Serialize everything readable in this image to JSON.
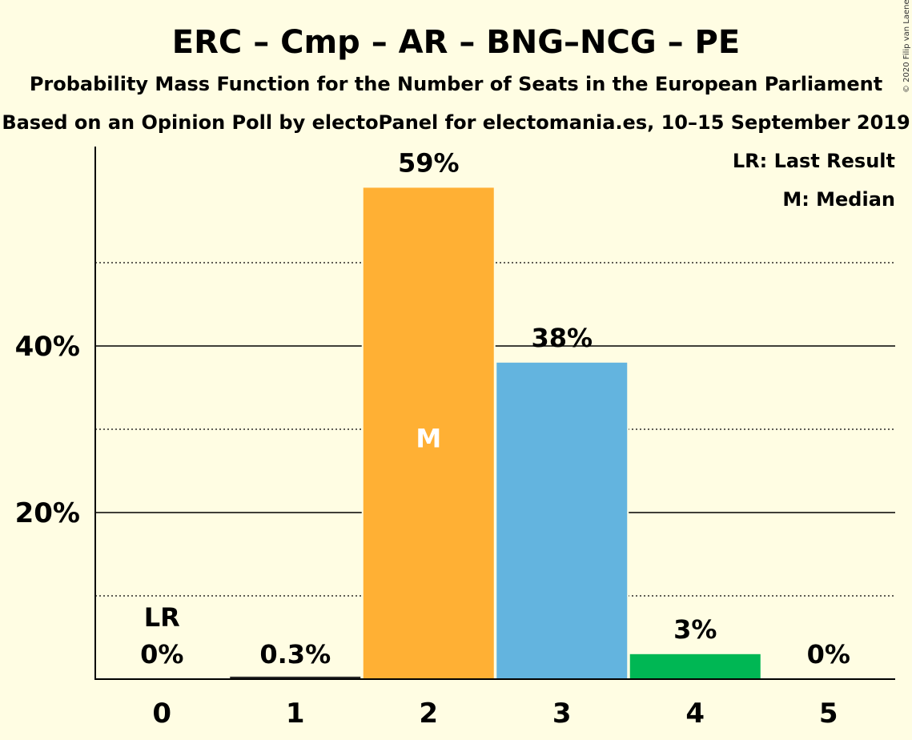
{
  "title": "ERC – Cmp – AR – BNG–NCG – PE",
  "subtitle1": "Probability Mass Function for the Number of Seats in the European Parliament",
  "subtitle2": "Based on an Opinion Poll by electoPanel for electomania.es, 10–15 September 2019",
  "copyright": "© 2020 Filip van Laenen",
  "legend": {
    "last_result": "LR: Last Result",
    "median": "M: Median"
  },
  "colors": {
    "background": "#FFFDE3",
    "bar_2": "#FFB034",
    "bar_3": "#63B4DF",
    "bar_4": "#00B754",
    "bar_1": "#2A2A2A"
  },
  "chart_data": {
    "type": "bar",
    "categories": [
      "0",
      "1",
      "2",
      "3",
      "4",
      "5"
    ],
    "values": [
      0,
      0.3,
      59,
      38,
      3,
      0
    ],
    "data_labels": [
      "0%",
      "0.3%",
      "59%",
      "38%",
      "3%",
      "0%"
    ],
    "bar_colors": [
      "#2A2A2A",
      "#2A2A2A",
      "#FFB034",
      "#63B4DF",
      "#00B754",
      "#2A2A2A"
    ],
    "ylim": [
      0,
      64
    ],
    "yticks": [
      20,
      40
    ],
    "ytick_labels": [
      "20%",
      "40%"
    ],
    "minor_gridlines": [
      10,
      30,
      50
    ],
    "last_result_category": "0",
    "last_result_label": "LR",
    "median_category": "2",
    "median_label": "M"
  }
}
